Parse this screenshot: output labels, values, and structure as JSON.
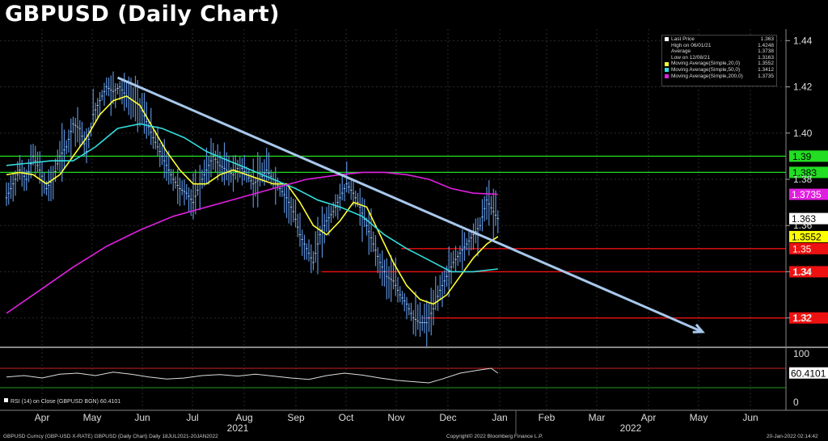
{
  "title": "GBPUSD (Daily Chart)",
  "legend": {
    "rows": [
      {
        "label": "Last Price",
        "value": "1.363",
        "color": "#ffffff"
      },
      {
        "label": "High on 06/01/21",
        "value": "1.4248",
        "color": ""
      },
      {
        "label": "Average",
        "value": "1.3738",
        "color": ""
      },
      {
        "label": "Low on 12/08/21",
        "value": "1.3163",
        "color": ""
      },
      {
        "label": "Moving Average(Simple,20,0)",
        "value": "1.3552",
        "color": "#ffff33"
      },
      {
        "label": "Moving Average(Simple,50,0)",
        "value": "1.3412",
        "color": "#33dddd"
      },
      {
        "label": "Moving Average(Simple,200,0)",
        "value": "1.3735",
        "color": "#e020e0"
      }
    ]
  },
  "rsi_label": "RSI (14)   on Close (GBPUSD BGN) 60.4101",
  "footer": {
    "left": "GBPUSD Curncy (GBP-USD X-RATE) GBPUSD (Daily Chart)  Daily 18JUL2021-20JAN2022",
    "center": "Copyright© 2022 Bloomberg Finance L.P.",
    "right": "20-Jan-2022 02:14:42"
  },
  "chart_data": {
    "type": "line",
    "x_months": [
      "Apr",
      "May",
      "Jun",
      "Jul",
      "Aug",
      "Sep",
      "Oct",
      "Nov",
      "Dec",
      "Jan",
      "Feb",
      "Mar",
      "Apr",
      "May",
      "Jun"
    ],
    "x_years": [
      "2021",
      "2022"
    ],
    "y_ticks": [
      "1.44",
      "1.42",
      "1.40",
      "1.38",
      "1.36",
      "1.34",
      "1.32"
    ],
    "ylim": [
      1.308,
      1.445
    ],
    "horizontal_levels": [
      {
        "value": 1.39,
        "label": "1.39",
        "color": "#22dd22",
        "bg": "#22dd22"
      },
      {
        "value": 1.383,
        "label": "1.383",
        "color": "#22dd22",
        "bg": "#22dd22"
      },
      {
        "value": 1.35,
        "label": "1.35",
        "color": "#ee1111",
        "bg": "#ee1111"
      },
      {
        "value": 1.34,
        "label": "1.34",
        "color": "#ee1111",
        "bg": "#ee1111"
      },
      {
        "value": 1.32,
        "label": "1.32",
        "color": "#ee1111",
        "bg": "#ee1111"
      }
    ],
    "price_labels": [
      {
        "value": 1.3735,
        "label": "1.3735",
        "bg": "#e020e0",
        "fg": "#ffffff"
      },
      {
        "value": 1.363,
        "label": "1.363",
        "bg": "#ffffff",
        "fg": "#000000"
      },
      {
        "value": 1.3552,
        "label": "1.3552",
        "bg": "#ffff00",
        "fg": "#000000"
      }
    ],
    "series": [
      {
        "name": "Last Price",
        "color": "#5a8fd8",
        "values": [
          [
            0,
            1.372
          ],
          [
            3,
            1.378
          ],
          [
            6,
            1.384
          ],
          [
            9,
            1.38
          ],
          [
            12,
            1.39
          ],
          [
            15,
            1.384
          ],
          [
            18,
            1.376
          ],
          [
            21,
            1.38
          ],
          [
            24,
            1.39
          ],
          [
            27,
            1.394
          ],
          [
            30,
            1.404
          ],
          [
            33,
            1.402
          ],
          [
            36,
            1.392
          ],
          [
            39,
            1.408
          ],
          [
            42,
            1.414
          ],
          [
            45,
            1.42
          ],
          [
            48,
            1.418
          ],
          [
            51,
            1.42
          ],
          [
            54,
            1.416
          ],
          [
            57,
            1.414
          ],
          [
            60,
            1.412
          ],
          [
            63,
            1.405
          ],
          [
            66,
            1.398
          ],
          [
            69,
            1.392
          ],
          [
            72,
            1.386
          ],
          [
            75,
            1.38
          ],
          [
            78,
            1.376
          ],
          [
            81,
            1.374
          ],
          [
            84,
            1.37
          ],
          [
            87,
            1.378
          ],
          [
            90,
            1.384
          ],
          [
            93,
            1.39
          ],
          [
            96,
            1.386
          ],
          [
            99,
            1.384
          ],
          [
            102,
            1.382
          ],
          [
            105,
            1.386
          ],
          [
            108,
            1.382
          ],
          [
            111,
            1.378
          ],
          [
            114,
            1.38
          ],
          [
            117,
            1.384
          ],
          [
            120,
            1.38
          ],
          [
            123,
            1.376
          ],
          [
            126,
            1.372
          ],
          [
            129,
            1.366
          ],
          [
            132,
            1.356
          ],
          [
            135,
            1.35
          ],
          [
            138,
            1.344
          ],
          [
            141,
            1.356
          ],
          [
            144,
            1.362
          ],
          [
            147,
            1.366
          ],
          [
            150,
            1.372
          ],
          [
            153,
            1.378
          ],
          [
            156,
            1.374
          ],
          [
            159,
            1.368
          ],
          [
            162,
            1.36
          ],
          [
            165,
            1.352
          ],
          [
            168,
            1.344
          ],
          [
            171,
            1.338
          ],
          [
            174,
            1.336
          ],
          [
            177,
            1.33
          ],
          [
            180,
            1.326
          ],
          [
            183,
            1.32
          ],
          [
            186,
            1.318
          ],
          [
            189,
            1.318
          ],
          [
            192,
            1.324
          ],
          [
            195,
            1.332
          ],
          [
            198,
            1.338
          ],
          [
            201,
            1.344
          ],
          [
            204,
            1.348
          ],
          [
            207,
            1.352
          ],
          [
            210,
            1.356
          ],
          [
            213,
            1.36
          ],
          [
            216,
            1.371
          ],
          [
            219,
            1.366
          ],
          [
            221,
            1.363
          ]
        ]
      },
      {
        "name": "Moving Average(Simple,20,0)",
        "color": "#ffff33",
        "values": [
          [
            0,
            1.382
          ],
          [
            6,
            1.383
          ],
          [
            12,
            1.382
          ],
          [
            18,
            1.378
          ],
          [
            24,
            1.382
          ],
          [
            30,
            1.39
          ],
          [
            36,
            1.398
          ],
          [
            42,
            1.408
          ],
          [
            48,
            1.414
          ],
          [
            54,
            1.416
          ],
          [
            60,
            1.412
          ],
          [
            66,
            1.402
          ],
          [
            72,
            1.392
          ],
          [
            78,
            1.384
          ],
          [
            84,
            1.378
          ],
          [
            90,
            1.378
          ],
          [
            96,
            1.382
          ],
          [
            102,
            1.384
          ],
          [
            108,
            1.382
          ],
          [
            114,
            1.38
          ],
          [
            120,
            1.378
          ],
          [
            126,
            1.378
          ],
          [
            132,
            1.37
          ],
          [
            138,
            1.36
          ],
          [
            144,
            1.356
          ],
          [
            150,
            1.362
          ],
          [
            156,
            1.37
          ],
          [
            162,
            1.368
          ],
          [
            168,
            1.356
          ],
          [
            174,
            1.344
          ],
          [
            180,
            1.334
          ],
          [
            186,
            1.328
          ],
          [
            192,
            1.326
          ],
          [
            198,
            1.33
          ],
          [
            204,
            1.338
          ],
          [
            210,
            1.346
          ],
          [
            216,
            1.352
          ],
          [
            221,
            1.3552
          ]
        ]
      },
      {
        "name": "Moving Average(Simple,50,0)",
        "color": "#33dddd",
        "values": [
          [
            0,
            1.386
          ],
          [
            10,
            1.387
          ],
          [
            20,
            1.388
          ],
          [
            30,
            1.388
          ],
          [
            40,
            1.394
          ],
          [
            50,
            1.402
          ],
          [
            60,
            1.404
          ],
          [
            70,
            1.402
          ],
          [
            80,
            1.398
          ],
          [
            90,
            1.392
          ],
          [
            100,
            1.388
          ],
          [
            110,
            1.384
          ],
          [
            120,
            1.38
          ],
          [
            130,
            1.376
          ],
          [
            140,
            1.371
          ],
          [
            150,
            1.368
          ],
          [
            160,
            1.364
          ],
          [
            170,
            1.356
          ],
          [
            180,
            1.35
          ],
          [
            190,
            1.345
          ],
          [
            200,
            1.34
          ],
          [
            210,
            1.34
          ],
          [
            221,
            1.3412
          ]
        ]
      },
      {
        "name": "Moving Average(Simple,200,0)",
        "color": "#e020e0",
        "values": [
          [
            0,
            1.322
          ],
          [
            15,
            1.332
          ],
          [
            30,
            1.342
          ],
          [
            45,
            1.351
          ],
          [
            60,
            1.358
          ],
          [
            75,
            1.364
          ],
          [
            90,
            1.368
          ],
          [
            105,
            1.372
          ],
          [
            120,
            1.376
          ],
          [
            135,
            1.38
          ],
          [
            150,
            1.382
          ],
          [
            160,
            1.383
          ],
          [
            170,
            1.383
          ],
          [
            180,
            1.382
          ],
          [
            190,
            1.38
          ],
          [
            200,
            1.376
          ],
          [
            210,
            1.374
          ],
          [
            221,
            1.3735
          ]
        ]
      }
    ],
    "trendline": {
      "color": "#a8c8ec",
      "from": [
        50,
        1.424
      ],
      "to": [
        313,
        1.314
      ]
    },
    "rsi": {
      "ticks": [
        "100",
        "0"
      ],
      "levels": [
        70,
        30
      ],
      "last": "60.4101",
      "values": [
        [
          0,
          52
        ],
        [
          8,
          55
        ],
        [
          16,
          50
        ],
        [
          24,
          58
        ],
        [
          32,
          60
        ],
        [
          40,
          55
        ],
        [
          48,
          62
        ],
        [
          56,
          58
        ],
        [
          64,
          52
        ],
        [
          72,
          48
        ],
        [
          80,
          50
        ],
        [
          88,
          55
        ],
        [
          96,
          57
        ],
        [
          104,
          54
        ],
        [
          112,
          58
        ],
        [
          120,
          54
        ],
        [
          128,
          50
        ],
        [
          136,
          47
        ],
        [
          144,
          55
        ],
        [
          152,
          60
        ],
        [
          160,
          56
        ],
        [
          168,
          50
        ],
        [
          176,
          45
        ],
        [
          184,
          42
        ],
        [
          190,
          40
        ],
        [
          196,
          48
        ],
        [
          204,
          60
        ],
        [
          212,
          66
        ],
        [
          218,
          70
        ],
        [
          221,
          60
        ]
      ]
    }
  }
}
